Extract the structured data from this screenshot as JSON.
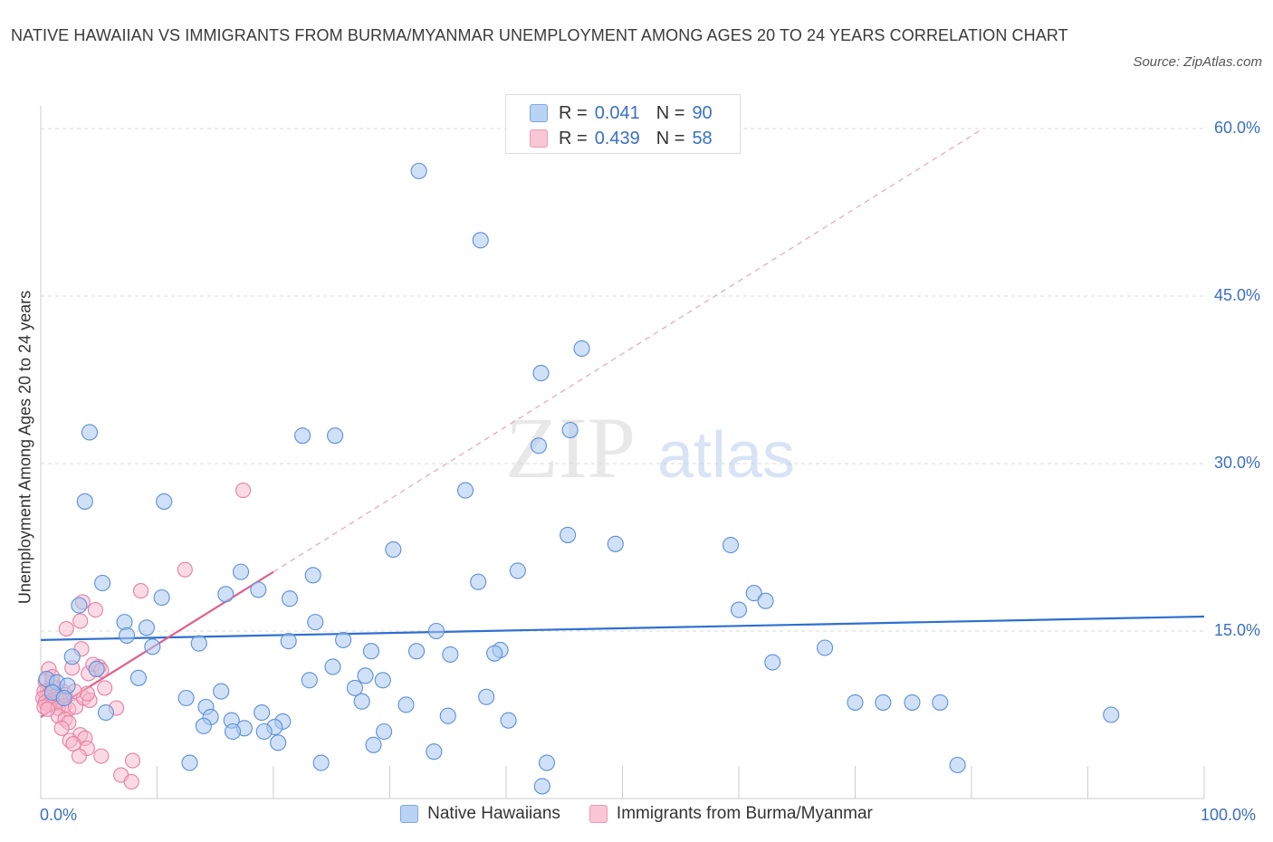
{
  "header": {
    "title": "NATIVE HAWAIIAN VS IMMIGRANTS FROM BURMA/MYANMAR UNEMPLOYMENT AMONG AGES 20 TO 24 YEARS CORRELATION CHART",
    "source": "Source: ZipAtlas.com"
  },
  "watermark": {
    "zip": "ZIP",
    "atlas": "atlas"
  },
  "legend": {
    "r_label": "R =",
    "n_label": "N =",
    "series1": {
      "r": "0.041",
      "n": "90"
    },
    "series2": {
      "r": "0.439",
      "n": "58"
    }
  },
  "colors": {
    "blue_fill": "#a9c8f0",
    "blue_stroke": "#5b8fd8",
    "blue_line": "#2f6fd0",
    "pink_fill": "#f5b8cb",
    "pink_stroke": "#e87ea0",
    "pink_line": "#e0608e",
    "grid": "#d9d9d9",
    "tick_text": "#3a6fc4"
  },
  "chart_data": {
    "type": "scatter",
    "title": "NATIVE HAWAIIAN VS IMMIGRANTS FROM BURMA/MYANMAR UNEMPLOYMENT AMONG AGES 20 TO 24 YEARS CORRELATION CHART",
    "xlabel": "",
    "ylabel": "Unemployment Among Ages 20 to 24 years",
    "xlim": [
      0,
      100
    ],
    "ylim": [
      0,
      60
    ],
    "x_tick_labels": [
      "0.0%",
      "100.0%"
    ],
    "y_ticks": [
      15,
      30,
      45,
      60
    ],
    "y_tick_labels": [
      "15.0%",
      "30.0%",
      "45.0%",
      "60.0%"
    ],
    "legend_position": "top-center",
    "grid": true,
    "series": [
      {
        "name": "Native Hawaiians",
        "r": 0.041,
        "n": 90,
        "trend": {
          "x": [
            0,
            100
          ],
          "y": [
            14.2,
            16.3
          ]
        },
        "points": [
          [
            32.5,
            56.2
          ],
          [
            37.8,
            50.0
          ],
          [
            46.5,
            40.3
          ],
          [
            43.0,
            38.1
          ],
          [
            45.5,
            33.0
          ],
          [
            42.8,
            31.6
          ],
          [
            4.2,
            32.8
          ],
          [
            22.5,
            32.5
          ],
          [
            25.3,
            32.5
          ],
          [
            3.8,
            26.6
          ],
          [
            10.6,
            26.6
          ],
          [
            36.5,
            27.6
          ],
          [
            45.3,
            23.6
          ],
          [
            49.4,
            22.8
          ],
          [
            30.3,
            22.3
          ],
          [
            59.3,
            22.7
          ],
          [
            17.2,
            20.3
          ],
          [
            23.4,
            20.0
          ],
          [
            41.0,
            20.4
          ],
          [
            37.6,
            19.4
          ],
          [
            5.3,
            19.3
          ],
          [
            18.7,
            18.7
          ],
          [
            15.9,
            18.3
          ],
          [
            10.4,
            18.0
          ],
          [
            21.4,
            17.9
          ],
          [
            61.3,
            18.4
          ],
          [
            62.3,
            17.7
          ],
          [
            3.3,
            17.3
          ],
          [
            60.0,
            16.9
          ],
          [
            7.2,
            15.8
          ],
          [
            9.1,
            15.3
          ],
          [
            23.6,
            15.8
          ],
          [
            7.4,
            14.6
          ],
          [
            34.0,
            15.0
          ],
          [
            21.3,
            14.1
          ],
          [
            26.0,
            14.2
          ],
          [
            13.6,
            13.9
          ],
          [
            9.6,
            13.6
          ],
          [
            28.4,
            13.2
          ],
          [
            32.3,
            13.2
          ],
          [
            39.5,
            13.3
          ],
          [
            39.0,
            13.0
          ],
          [
            35.2,
            12.9
          ],
          [
            67.4,
            13.5
          ],
          [
            2.7,
            12.7
          ],
          [
            62.9,
            12.2
          ],
          [
            25.1,
            11.8
          ],
          [
            4.8,
            11.6
          ],
          [
            0.5,
            10.7
          ],
          [
            1.4,
            10.4
          ],
          [
            2.3,
            10.1
          ],
          [
            8.4,
            10.8
          ],
          [
            23.1,
            10.6
          ],
          [
            27.9,
            11.0
          ],
          [
            29.4,
            10.6
          ],
          [
            27.0,
            9.9
          ],
          [
            15.5,
            9.6
          ],
          [
            12.5,
            9.0
          ],
          [
            27.6,
            8.7
          ],
          [
            31.4,
            8.4
          ],
          [
            38.3,
            9.1
          ],
          [
            70.0,
            8.6
          ],
          [
            72.4,
            8.6
          ],
          [
            74.9,
            8.6
          ],
          [
            77.3,
            8.6
          ],
          [
            92.0,
            7.5
          ],
          [
            14.2,
            8.2
          ],
          [
            5.6,
            7.7
          ],
          [
            19.0,
            7.7
          ],
          [
            14.6,
            7.3
          ],
          [
            16.4,
            7.0
          ],
          [
            20.8,
            6.9
          ],
          [
            35.0,
            7.4
          ],
          [
            40.2,
            7.0
          ],
          [
            14.0,
            6.5
          ],
          [
            17.5,
            6.3
          ],
          [
            20.1,
            6.4
          ],
          [
            16.5,
            6.0
          ],
          [
            19.2,
            6.0
          ],
          [
            29.5,
            6.0
          ],
          [
            20.4,
            5.0
          ],
          [
            28.6,
            4.8
          ],
          [
            33.8,
            4.2
          ],
          [
            12.8,
            3.2
          ],
          [
            24.1,
            3.2
          ],
          [
            43.5,
            3.2
          ],
          [
            78.8,
            3.0
          ],
          [
            43.1,
            1.1
          ],
          [
            1.0,
            9.5
          ],
          [
            2.0,
            9.0
          ]
        ]
      },
      {
        "name": "Immigrants from Burma/Myanmar",
        "r": 0.439,
        "n": 58,
        "trend": {
          "x": [
            0,
            20
          ],
          "y": [
            7.3,
            20.3
          ],
          "dashed_extension": {
            "x": [
              20,
              81
            ],
            "y": [
              20.3,
              60.0
            ]
          }
        },
        "points": [
          [
            17.4,
            27.6
          ],
          [
            12.4,
            20.5
          ],
          [
            8.6,
            18.6
          ],
          [
            3.6,
            17.6
          ],
          [
            4.7,
            16.9
          ],
          [
            3.4,
            15.9
          ],
          [
            2.2,
            15.2
          ],
          [
            3.5,
            13.4
          ],
          [
            0.7,
            11.6
          ],
          [
            2.7,
            11.7
          ],
          [
            4.1,
            11.2
          ],
          [
            5.0,
            11.8
          ],
          [
            4.5,
            12.0
          ],
          [
            0.4,
            10.5
          ],
          [
            1.0,
            10.4
          ],
          [
            1.2,
            9.9
          ],
          [
            0.6,
            9.7
          ],
          [
            0.3,
            9.6
          ],
          [
            0.8,
            9.5
          ],
          [
            1.9,
            9.6
          ],
          [
            2.1,
            9.3
          ],
          [
            1.3,
            9.2
          ],
          [
            0.5,
            9.1
          ],
          [
            0.2,
            9.0
          ],
          [
            1.4,
            8.9
          ],
          [
            1.7,
            8.8
          ],
          [
            0.9,
            8.7
          ],
          [
            0.4,
            8.6
          ],
          [
            1.1,
            8.5
          ],
          [
            0.7,
            8.4
          ],
          [
            2.0,
            8.3
          ],
          [
            0.3,
            8.2
          ],
          [
            1.5,
            8.1
          ],
          [
            2.4,
            8.0
          ],
          [
            3.0,
            8.2
          ],
          [
            3.7,
            9.0
          ],
          [
            4.2,
            8.8
          ],
          [
            4.0,
            9.4
          ],
          [
            5.5,
            9.9
          ],
          [
            5.2,
            11.5
          ],
          [
            6.5,
            8.1
          ],
          [
            1.5,
            7.4
          ],
          [
            2.1,
            7.1
          ],
          [
            2.4,
            6.8
          ],
          [
            1.8,
            6.3
          ],
          [
            3.4,
            5.7
          ],
          [
            3.8,
            5.4
          ],
          [
            2.5,
            5.2
          ],
          [
            2.8,
            4.9
          ],
          [
            4.0,
            4.5
          ],
          [
            3.3,
            3.8
          ],
          [
            5.2,
            3.8
          ],
          [
            7.9,
            3.4
          ],
          [
            6.9,
            2.1
          ],
          [
            7.8,
            1.5
          ],
          [
            1.0,
            10.9
          ],
          [
            0.6,
            8.0
          ],
          [
            2.9,
            9.6
          ]
        ]
      }
    ]
  },
  "bottom_legend": {
    "series1": "Native Hawaiians",
    "series2": "Immigrants from Burma/Myanmar"
  }
}
